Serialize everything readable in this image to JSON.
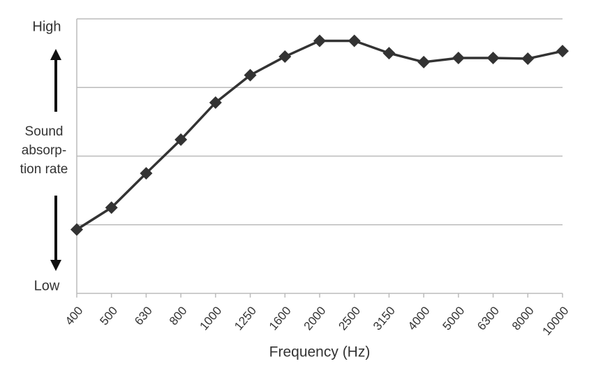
{
  "chart_data": {
    "type": "line",
    "categories": [
      "400",
      "500",
      "630",
      "800",
      "1000",
      "1250",
      "1600",
      "2000",
      "2500",
      "3150",
      "4000",
      "5000",
      "6300",
      "8000",
      "10000"
    ],
    "series": [
      {
        "color": "#333333",
        "values": [
          0.93,
          1.25,
          1.75,
          2.24,
          2.78,
          3.18,
          3.45,
          3.68,
          3.68,
          3.5,
          3.37,
          3.43,
          3.43,
          3.42,
          3.53
        ]
      }
    ],
    "ylim": [
      0,
      4
    ],
    "yticks": [
      {
        "value": 0,
        "label": "Low"
      },
      {
        "value": 4,
        "label": "High"
      }
    ],
    "gridlines": [
      1,
      2,
      3,
      4
    ],
    "ylabel": [
      "Sound",
      "absorp-",
      "tion rate"
    ],
    "xlabel": "Frequency (Hz)"
  }
}
